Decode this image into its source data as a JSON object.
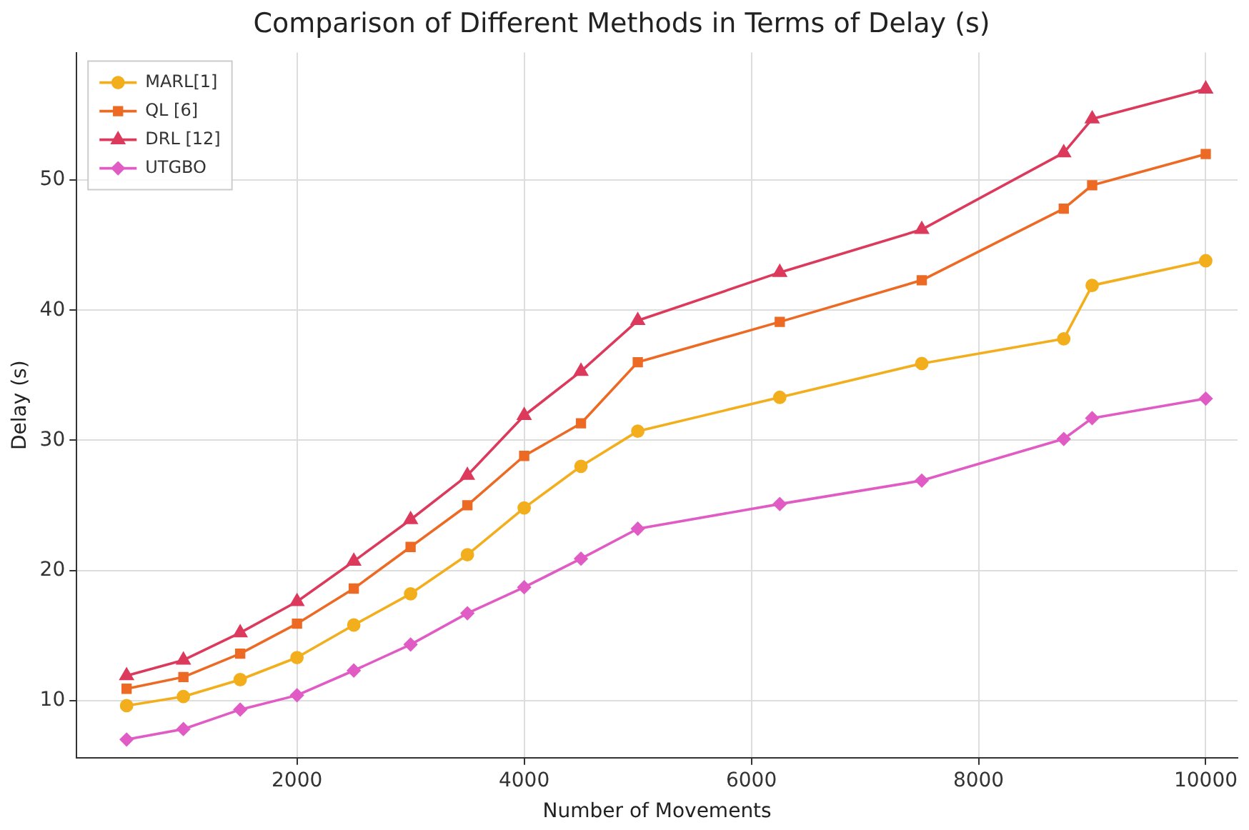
{
  "chart_data": {
    "type": "line",
    "title": "Comparison of Different Methods in Terms of Delay (s)",
    "xlabel": "Number of Movements",
    "ylabel": "Delay (s)",
    "x": [
      500,
      1000,
      1500,
      2000,
      2500,
      3000,
      3500,
      4000,
      4500,
      5000,
      6250,
      7500,
      8750,
      9000,
      10000
    ],
    "series": [
      {
        "name": "MARL[1]",
        "color": "#f2ae1c",
        "marker": "circle",
        "values": [
          9.6,
          10.3,
          11.6,
          13.3,
          15.8,
          18.2,
          21.2,
          24.8,
          28.0,
          30.7,
          33.3,
          35.9,
          37.8,
          41.9,
          43.8
        ]
      },
      {
        "name": "QL [6]",
        "color": "#ec6a24",
        "marker": "square",
        "values": [
          10.9,
          11.8,
          13.6,
          15.9,
          18.6,
          21.8,
          25.0,
          28.8,
          31.3,
          36.0,
          39.1,
          42.3,
          47.8,
          49.6,
          52.0
        ]
      },
      {
        "name": "DRL [12]",
        "color": "#dc3a5c",
        "marker": "triangle",
        "values": [
          11.9,
          13.1,
          15.2,
          17.6,
          20.7,
          23.9,
          27.3,
          31.9,
          35.3,
          39.2,
          42.9,
          46.2,
          52.1,
          54.7,
          57.0
        ]
      },
      {
        "name": "UTGBO",
        "color": "#e05cc4",
        "marker": "diamond",
        "values": [
          7.0,
          7.8,
          9.3,
          10.4,
          12.3,
          14.3,
          16.7,
          18.7,
          20.9,
          23.2,
          25.1,
          26.9,
          30.1,
          31.7,
          33.2
        ]
      }
    ],
    "xlim": [
      60,
      10280
    ],
    "xticks": [
      2000,
      4000,
      6000,
      8000,
      10000
    ],
    "ylim": [
      5.6,
      59.8
    ],
    "yticks": [
      10,
      20,
      30,
      40,
      50
    ],
    "grid": true,
    "legend": "top left",
    "line_style": "solid"
  }
}
